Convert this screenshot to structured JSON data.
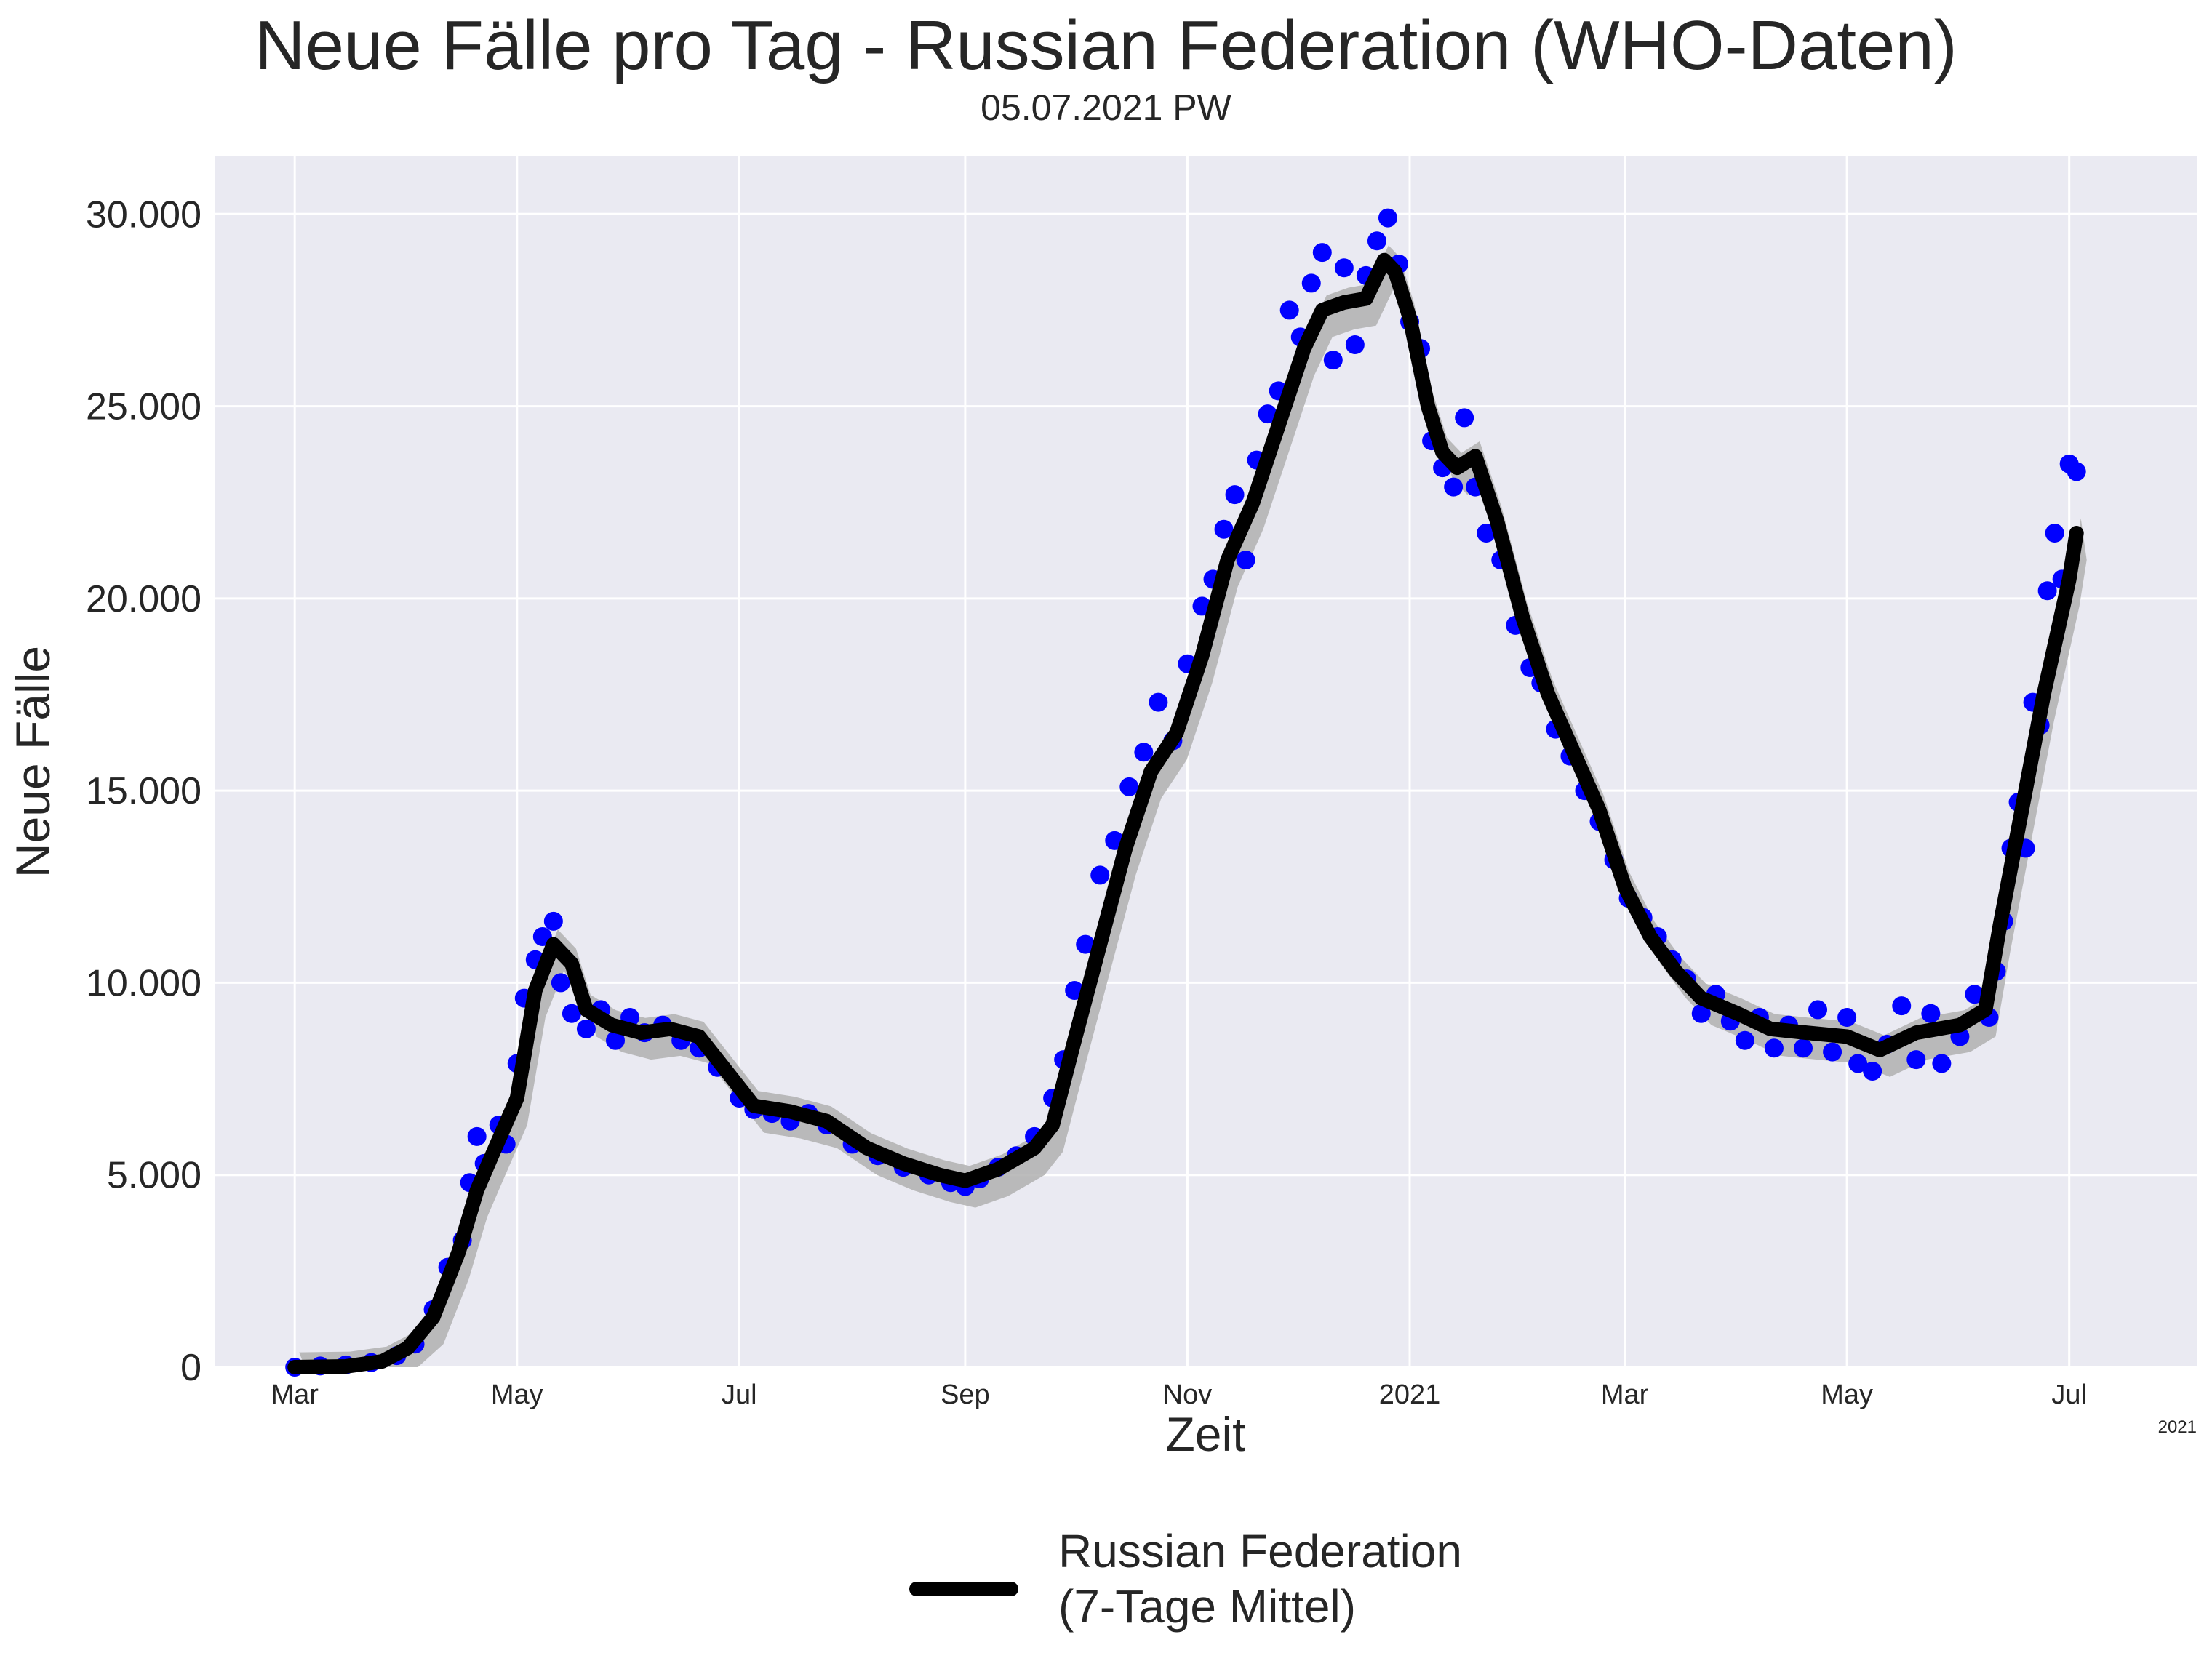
{
  "title": "Neue Fälle pro Tag - Russian Federation (WHO-Daten)",
  "subtitle": "05.07.2021 PW",
  "colors": {
    "background": "#eaeaf2",
    "grid": "#ffffff",
    "points": "#0000ff",
    "line": "#000000",
    "band": "#b0b0b0"
  },
  "legend": {
    "label": "Russian Federation\n(7-Tage Mittel)",
    "placement": "bottom-center"
  },
  "chart_data": {
    "type": "line",
    "title": "Neue Fälle pro Tag - Russian Federation (WHO-Daten)",
    "subtitle": "05.07.2021 PW",
    "xlabel": "Zeit",
    "ylabel": "Neue Fälle",
    "x_tick_labels": [
      "Mar",
      "May",
      "Jul",
      "Sep",
      "Nov",
      "2021",
      "Mar",
      "May",
      "Jul"
    ],
    "x_tick_dates": [
      "2020-03-01",
      "2020-05-01",
      "2020-07-01",
      "2020-09-01",
      "2020-11-01",
      "2021-01-01",
      "2021-03-01",
      "2021-05-01",
      "2021-07-01"
    ],
    "x_offset_label": "2021",
    "xlim": [
      "2020-02-08",
      "2021-08-05"
    ],
    "ylim": [
      0,
      31500
    ],
    "y_ticks": [
      0,
      5000,
      10000,
      15000,
      20000,
      25000,
      30000
    ],
    "y_tick_labels": [
      "0",
      "5.000",
      "10.000",
      "15.000",
      "20.000",
      "25.000",
      "30.000"
    ],
    "grid": true,
    "legend_placement": "bottom-center",
    "series": [
      {
        "name": "Russian Federation (7-Tage Mittel)",
        "style": "line",
        "points": [
          [
            "2020-03-01",
            0
          ],
          [
            "2020-03-15",
            20
          ],
          [
            "2020-03-25",
            150
          ],
          [
            "2020-04-01",
            500
          ],
          [
            "2020-04-08",
            1300
          ],
          [
            "2020-04-15",
            3000
          ],
          [
            "2020-04-20",
            4600
          ],
          [
            "2020-04-25",
            5700
          ],
          [
            "2020-05-01",
            7000
          ],
          [
            "2020-05-06",
            9800
          ],
          [
            "2020-05-11",
            11000
          ],
          [
            "2020-05-16",
            10500
          ],
          [
            "2020-05-20",
            9300
          ],
          [
            "2020-05-27",
            8900
          ],
          [
            "2020-06-04",
            8700
          ],
          [
            "2020-06-12",
            8800
          ],
          [
            "2020-06-20",
            8600
          ],
          [
            "2020-06-30",
            7400
          ],
          [
            "2020-07-05",
            6800
          ],
          [
            "2020-07-15",
            6650
          ],
          [
            "2020-07-25",
            6400
          ],
          [
            "2020-08-05",
            5700
          ],
          [
            "2020-08-15",
            5300
          ],
          [
            "2020-08-25",
            5000
          ],
          [
            "2020-09-01",
            4850
          ],
          [
            "2020-09-10",
            5150
          ],
          [
            "2020-09-20",
            5700
          ],
          [
            "2020-09-25",
            6300
          ],
          [
            "2020-10-01",
            8500
          ],
          [
            "2020-10-08",
            11000
          ],
          [
            "2020-10-15",
            13500
          ],
          [
            "2020-10-22",
            15500
          ],
          [
            "2020-10-29",
            16500
          ],
          [
            "2020-11-05",
            18500
          ],
          [
            "2020-11-12",
            21000
          ],
          [
            "2020-11-19",
            22500
          ],
          [
            "2020-11-26",
            24500
          ],
          [
            "2020-12-03",
            26500
          ],
          [
            "2020-12-08",
            27500
          ],
          [
            "2020-12-14",
            27700
          ],
          [
            "2020-12-20",
            27800
          ],
          [
            "2020-12-25",
            28800
          ],
          [
            "2020-12-28",
            28500
          ],
          [
            "2021-01-01",
            27300
          ],
          [
            "2021-01-06",
            25000
          ],
          [
            "2021-01-10",
            23800
          ],
          [
            "2021-01-14",
            23400
          ],
          [
            "2021-01-19",
            23700
          ],
          [
            "2021-01-25",
            22000
          ],
          [
            "2021-02-01",
            19500
          ],
          [
            "2021-02-08",
            17500
          ],
          [
            "2021-02-15",
            16000
          ],
          [
            "2021-02-22",
            14500
          ],
          [
            "2021-03-01",
            12500
          ],
          [
            "2021-03-08",
            11200
          ],
          [
            "2021-03-15",
            10300
          ],
          [
            "2021-03-22",
            9600
          ],
          [
            "2021-04-01",
            9200
          ],
          [
            "2021-04-10",
            8800
          ],
          [
            "2021-04-20",
            8700
          ],
          [
            "2021-05-01",
            8600
          ],
          [
            "2021-05-10",
            8250
          ],
          [
            "2021-05-20",
            8700
          ],
          [
            "2021-06-01",
            8900
          ],
          [
            "2021-06-08",
            9300
          ],
          [
            "2021-06-12",
            11500
          ],
          [
            "2021-06-18",
            14500
          ],
          [
            "2021-06-24",
            17500
          ],
          [
            "2021-07-01",
            20500
          ],
          [
            "2021-07-03",
            21700
          ]
        ]
      },
      {
        "name": "Neue Fälle",
        "style": "scatter",
        "points": [
          [
            "2020-03-01",
            0
          ],
          [
            "2020-03-08",
            30
          ],
          [
            "2020-03-15",
            60
          ],
          [
            "2020-03-22",
            120
          ],
          [
            "2020-03-29",
            300
          ],
          [
            "2020-04-03",
            600
          ],
          [
            "2020-04-08",
            1500
          ],
          [
            "2020-04-12",
            2600
          ],
          [
            "2020-04-16",
            3300
          ],
          [
            "2020-04-18",
            4800
          ],
          [
            "2020-04-20",
            6000
          ],
          [
            "2020-04-22",
            5300
          ],
          [
            "2020-04-26",
            6300
          ],
          [
            "2020-04-28",
            5800
          ],
          [
            "2020-05-01",
            7900
          ],
          [
            "2020-05-03",
            9600
          ],
          [
            "2020-05-06",
            10600
          ],
          [
            "2020-05-08",
            11200
          ],
          [
            "2020-05-11",
            11600
          ],
          [
            "2020-05-13",
            10000
          ],
          [
            "2020-05-16",
            9200
          ],
          [
            "2020-05-20",
            8800
          ],
          [
            "2020-05-24",
            9300
          ],
          [
            "2020-05-28",
            8500
          ],
          [
            "2020-06-01",
            9100
          ],
          [
            "2020-06-05",
            8700
          ],
          [
            "2020-06-10",
            8900
          ],
          [
            "2020-06-15",
            8500
          ],
          [
            "2020-06-20",
            8300
          ],
          [
            "2020-06-25",
            7800
          ],
          [
            "2020-07-01",
            7000
          ],
          [
            "2020-07-05",
            6700
          ],
          [
            "2020-07-10",
            6600
          ],
          [
            "2020-07-15",
            6400
          ],
          [
            "2020-07-20",
            6600
          ],
          [
            "2020-07-25",
            6300
          ],
          [
            "2020-08-01",
            5800
          ],
          [
            "2020-08-08",
            5500
          ],
          [
            "2020-08-15",
            5200
          ],
          [
            "2020-08-22",
            5000
          ],
          [
            "2020-08-28",
            4800
          ],
          [
            "2020-09-01",
            4700
          ],
          [
            "2020-09-05",
            4900
          ],
          [
            "2020-09-10",
            5200
          ],
          [
            "2020-09-15",
            5500
          ],
          [
            "2020-09-20",
            6000
          ],
          [
            "2020-09-25",
            7000
          ],
          [
            "2020-09-28",
            8000
          ],
          [
            "2020-10-01",
            9800
          ],
          [
            "2020-10-04",
            11000
          ],
          [
            "2020-10-08",
            12800
          ],
          [
            "2020-10-12",
            13700
          ],
          [
            "2020-10-16",
            15100
          ],
          [
            "2020-10-20",
            16000
          ],
          [
            "2020-10-24",
            17300
          ],
          [
            "2020-10-28",
            16300
          ],
          [
            "2020-11-01",
            18300
          ],
          [
            "2020-11-05",
            19800
          ],
          [
            "2020-11-08",
            20500
          ],
          [
            "2020-11-11",
            21800
          ],
          [
            "2020-11-14",
            22700
          ],
          [
            "2020-11-17",
            21000
          ],
          [
            "2020-11-20",
            23600
          ],
          [
            "2020-11-23",
            24800
          ],
          [
            "2020-11-26",
            25400
          ],
          [
            "2020-11-29",
            27500
          ],
          [
            "2020-12-02",
            26800
          ],
          [
            "2020-12-05",
            28200
          ],
          [
            "2020-12-08",
            29000
          ],
          [
            "2020-12-11",
            26200
          ],
          [
            "2020-12-14",
            28600
          ],
          [
            "2020-12-17",
            26600
          ],
          [
            "2020-12-20",
            28400
          ],
          [
            "2020-12-23",
            29300
          ],
          [
            "2020-12-26",
            29900
          ],
          [
            "2020-12-29",
            28700
          ],
          [
            "2021-01-01",
            27200
          ],
          [
            "2021-01-04",
            26500
          ],
          [
            "2021-01-07",
            24100
          ],
          [
            "2021-01-10",
            23400
          ],
          [
            "2021-01-13",
            22900
          ],
          [
            "2021-01-16",
            24700
          ],
          [
            "2021-01-19",
            22900
          ],
          [
            "2021-01-22",
            21700
          ],
          [
            "2021-01-26",
            21000
          ],
          [
            "2021-01-30",
            19300
          ],
          [
            "2021-02-03",
            18200
          ],
          [
            "2021-02-06",
            17800
          ],
          [
            "2021-02-10",
            16600
          ],
          [
            "2021-02-14",
            15900
          ],
          [
            "2021-02-18",
            15000
          ],
          [
            "2021-02-22",
            14200
          ],
          [
            "2021-02-26",
            13200
          ],
          [
            "2021-03-02",
            12200
          ],
          [
            "2021-03-06",
            11700
          ],
          [
            "2021-03-10",
            11200
          ],
          [
            "2021-03-14",
            10600
          ],
          [
            "2021-03-18",
            10100
          ],
          [
            "2021-03-22",
            9200
          ],
          [
            "2021-03-26",
            9700
          ],
          [
            "2021-03-30",
            9000
          ],
          [
            "2021-04-03",
            8500
          ],
          [
            "2021-04-07",
            9100
          ],
          [
            "2021-04-11",
            8300
          ],
          [
            "2021-04-15",
            8900
          ],
          [
            "2021-04-19",
            8300
          ],
          [
            "2021-04-23",
            9300
          ],
          [
            "2021-04-27",
            8200
          ],
          [
            "2021-05-01",
            9100
          ],
          [
            "2021-05-04",
            7900
          ],
          [
            "2021-05-08",
            7700
          ],
          [
            "2021-05-12",
            8400
          ],
          [
            "2021-05-16",
            9400
          ],
          [
            "2021-05-20",
            8000
          ],
          [
            "2021-05-24",
            9200
          ],
          [
            "2021-05-27",
            7900
          ],
          [
            "2021-06-01",
            8600
          ],
          [
            "2021-06-05",
            9700
          ],
          [
            "2021-06-09",
            9100
          ],
          [
            "2021-06-11",
            10300
          ],
          [
            "2021-06-13",
            11600
          ],
          [
            "2021-06-15",
            13500
          ],
          [
            "2021-06-17",
            14700
          ],
          [
            "2021-06-19",
            13500
          ],
          [
            "2021-06-21",
            17300
          ],
          [
            "2021-06-23",
            16700
          ],
          [
            "2021-06-25",
            20200
          ],
          [
            "2021-06-27",
            21700
          ],
          [
            "2021-06-29",
            20500
          ],
          [
            "2021-07-01",
            23500
          ],
          [
            "2021-07-03",
            23300
          ]
        ]
      }
    ]
  }
}
